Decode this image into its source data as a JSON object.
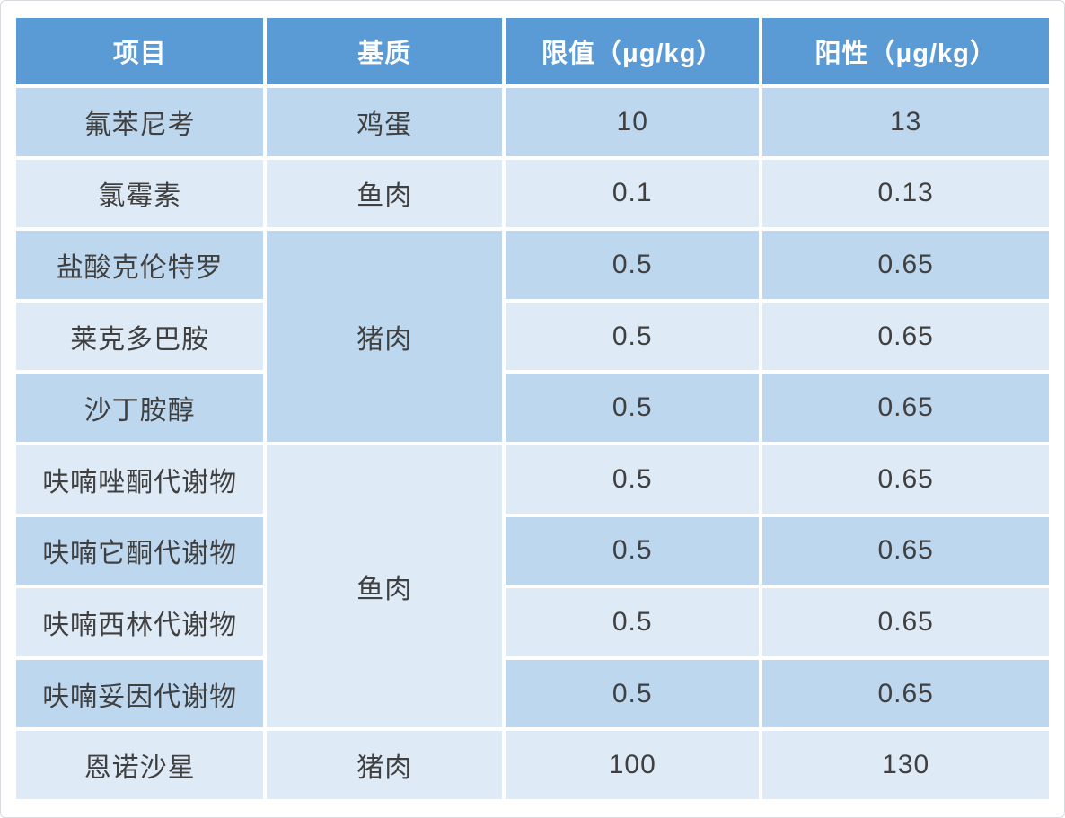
{
  "colors": {
    "header_bg": "#5b9bd5",
    "header_text": "#ffffff",
    "row_shade_dark": "#bdd7ee",
    "row_shade_light": "#deeaf6",
    "body_text": "#404040",
    "grid_gap": "#ffffff",
    "frame_border": "#d6dade"
  },
  "table": {
    "columns": [
      {
        "label": "项目"
      },
      {
        "label": "基质"
      },
      {
        "label": "限值（μg/kg）"
      },
      {
        "label": "阳性（μg/kg）"
      }
    ],
    "rows": [
      {
        "item": "氟苯尼考",
        "matrix": "鸡蛋",
        "limit": "10",
        "positive": "13"
      },
      {
        "item": "氯霉素",
        "matrix": "鱼肉",
        "limit": "0.1",
        "positive": "0.13"
      },
      {
        "item": "盐酸克伦特罗",
        "matrix": "猪肉",
        "limit": "0.5",
        "positive": "0.65"
      },
      {
        "item": "莱克多巴胺",
        "limit": "0.5",
        "positive": "0.65"
      },
      {
        "item": "沙丁胺醇",
        "limit": "0.5",
        "positive": "0.65"
      },
      {
        "item": "呋喃唑酮代谢物",
        "matrix": "鱼肉",
        "limit": "0.5",
        "positive": "0.65"
      },
      {
        "item": "呋喃它酮代谢物",
        "limit": "0.5",
        "positive": "0.65"
      },
      {
        "item": "呋喃西林代谢物",
        "limit": "0.5",
        "positive": "0.65"
      },
      {
        "item": "呋喃妥因代谢物",
        "limit": "0.5",
        "positive": "0.65"
      },
      {
        "item": "恩诺沙星",
        "matrix": "猪肉",
        "limit": "100",
        "positive": "130"
      }
    ]
  }
}
